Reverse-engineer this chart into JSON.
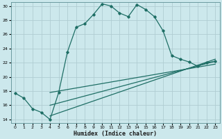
{
  "xlabel": "Humidex (Indice chaleur)",
  "bg_color": "#cce8ec",
  "grid_color": "#b0cdd2",
  "line_color": "#1e6e65",
  "xlim": [
    -0.5,
    23.5
  ],
  "ylim": [
    13.5,
    30.5
  ],
  "xticks": [
    0,
    1,
    2,
    3,
    4,
    5,
    6,
    7,
    8,
    9,
    10,
    11,
    12,
    13,
    14,
    15,
    16,
    17,
    18,
    19,
    20,
    21,
    22,
    23
  ],
  "yticks": [
    14,
    16,
    18,
    20,
    22,
    24,
    26,
    28,
    30
  ],
  "main_x": [
    0,
    1,
    2,
    3,
    4,
    5,
    6,
    7,
    8,
    9,
    10,
    11,
    12,
    13,
    14,
    15,
    16,
    17,
    18,
    19,
    20,
    21,
    22,
    23
  ],
  "main_y": [
    17.7,
    17.0,
    15.5,
    15.0,
    14.0,
    17.8,
    23.5,
    27.0,
    27.5,
    28.8,
    30.3,
    30.0,
    29.0,
    28.5,
    30.2,
    29.5,
    28.5,
    26.5,
    23.0,
    22.5,
    22.1,
    21.5,
    22.0,
    22.2
  ],
  "line1_x": [
    4,
    23
  ],
  "line1_y": [
    14.5,
    22.5
  ],
  "line2_x": [
    4,
    23
  ],
  "line2_y": [
    16.0,
    22.2
  ],
  "line3_x": [
    4,
    23
  ],
  "line3_y": [
    17.8,
    21.8
  ]
}
